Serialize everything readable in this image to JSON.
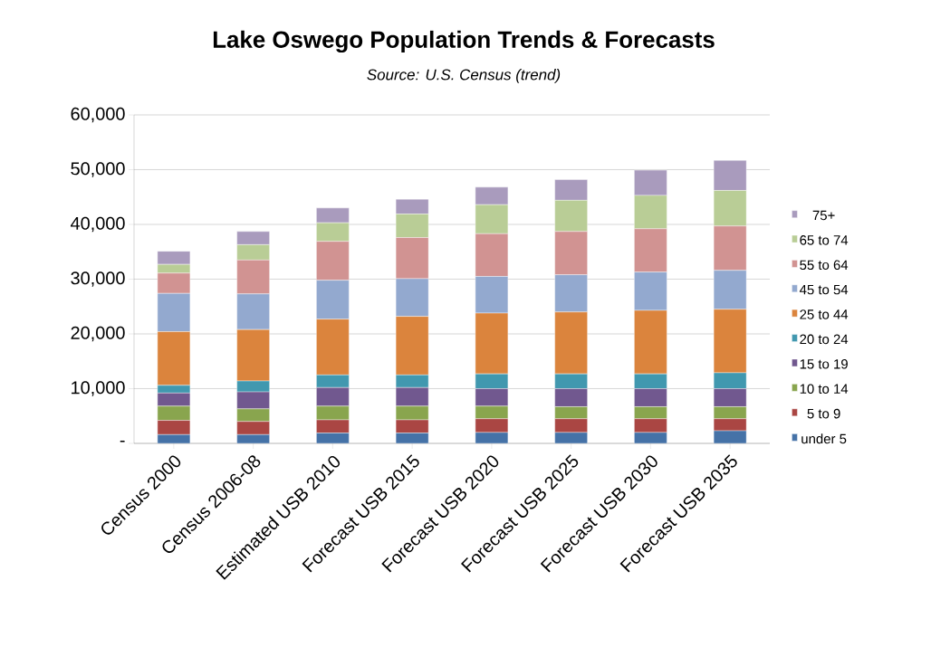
{
  "chart_data": {
    "type": "bar",
    "stacked": true,
    "title": "Lake Oswego Population Trends & Forecasts",
    "subtitle": "*Source: U.S. Census (trend)*",
    "categories": [
      "Census 2000",
      "Census 2006-08",
      "Estimated  USB 2010",
      "Forecast USB 2015",
      "Forecast USB 2020",
      "Forecast USB 2025",
      "Forecast USB 2030",
      "Forecast USB 2035"
    ],
    "ylim": [
      0,
      60000
    ],
    "yticks": [
      {
        "value": 0,
        "label": "-"
      },
      {
        "value": 10000,
        "label": "10,000"
      },
      {
        "value": 20000,
        "label": "20,000"
      },
      {
        "value": 30000,
        "label": "30,000"
      },
      {
        "value": 40000,
        "label": "40,000"
      },
      {
        "value": 50000,
        "label": "50,000"
      },
      {
        "value": 60000,
        "label": "60,000"
      }
    ],
    "grid": "y",
    "legend": "right",
    "series": [
      {
        "name": "under 5",
        "color": "#4572a7",
        "values": [
          1600,
          1600,
          1900,
          1900,
          2000,
          2000,
          2000,
          2300
        ]
      },
      {
        "name": "5 to 9",
        "color": "#aa4643",
        "values": [
          2600,
          2400,
          2400,
          2400,
          2500,
          2500,
          2500,
          2200
        ]
      },
      {
        "name": "10 to 14",
        "color": "#89a54e",
        "values": [
          2600,
          2300,
          2500,
          2500,
          2300,
          2200,
          2200,
          2200
        ]
      },
      {
        "name": "15 to 19",
        "color": "#71588f",
        "values": [
          2400,
          3100,
          3400,
          3400,
          3200,
          3300,
          3300,
          3300
        ]
      },
      {
        "name": "20 to 24",
        "color": "#4198af",
        "values": [
          1400,
          2000,
          2300,
          2300,
          2700,
          2700,
          2700,
          2900
        ]
      },
      {
        "name": "25 to 44",
        "color": "#db843d",
        "values": [
          9800,
          9400,
          10200,
          10700,
          11100,
          11300,
          11600,
          11600
        ]
      },
      {
        "name": "45 to 54",
        "color": "#93a9cf",
        "values": [
          7000,
          6500,
          7100,
          6900,
          6700,
          6800,
          7000,
          7100
        ]
      },
      {
        "name": "55 to 64",
        "color": "#d19392",
        "values": [
          3700,
          6200,
          7100,
          7500,
          7800,
          7900,
          7900,
          8100
        ]
      },
      {
        "name": "65 to 74",
        "color": "#b9cd96",
        "values": [
          1600,
          2800,
          3400,
          4300,
          5300,
          5700,
          6100,
          6500
        ]
      },
      {
        "name": "75+",
        "color": "#a99bbd",
        "values": [
          2400,
          2400,
          2700,
          2700,
          3200,
          3800,
          4600,
          5500
        ]
      }
    ]
  }
}
